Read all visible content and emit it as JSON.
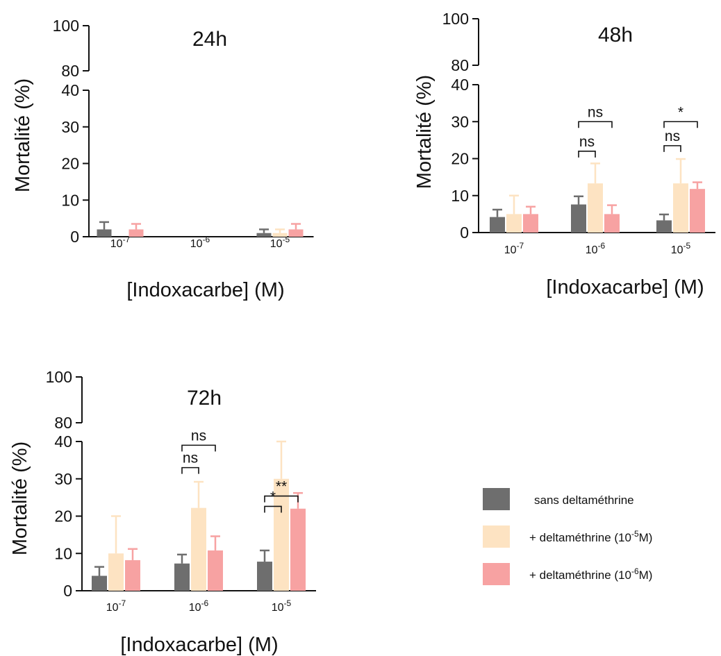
{
  "colors": {
    "sans": "#6e6e6e",
    "d5": "#fde3c2",
    "d6": "#f7a2a2",
    "axis": "#111111"
  },
  "legend": {
    "items": [
      {
        "label": "sans deltaméthrine",
        "color": "#6e6e6e"
      },
      {
        "label": "+ deltaméthrine (10",
        "sup": "-5",
        "post": "M)",
        "color": "#fde3c2"
      },
      {
        "label": "+ deltaméthrine (10",
        "sup": "-6",
        "post": "M)",
        "color": "#f7a2a2"
      }
    ]
  },
  "chart_data": [
    {
      "type": "bar",
      "title": "24h",
      "ylabel": "Mortalité (%)",
      "xlabel": "[Indoxacarbe] (M)",
      "categories": [
        {
          "base": "10",
          "exp": "-7"
        },
        {
          "base": "10",
          "exp": "-6"
        },
        {
          "base": "10",
          "exp": "-5"
        }
      ],
      "yticks_lower": [
        0,
        10,
        20,
        30,
        40
      ],
      "yticks_upper": [
        80,
        100
      ],
      "axis_break": [
        40,
        80
      ],
      "series": [
        {
          "values": [
            2,
            0,
            1
          ],
          "err": [
            2,
            0,
            1
          ]
        },
        {
          "values": [
            0,
            0,
            1
          ],
          "err": [
            0,
            0,
            1
          ]
        },
        {
          "values": [
            2,
            0,
            2
          ],
          "err": [
            1.5,
            0,
            1.5
          ]
        }
      ],
      "significance": []
    },
    {
      "type": "bar",
      "title": "48h",
      "ylabel": "Mortalité (%)",
      "xlabel": "[Indoxacarbe] (M)",
      "categories": [
        {
          "base": "10",
          "exp": "-7"
        },
        {
          "base": "10",
          "exp": "-6"
        },
        {
          "base": "10",
          "exp": "-5"
        }
      ],
      "yticks_lower": [
        0,
        10,
        20,
        30,
        40
      ],
      "yticks_upper": [
        80,
        100
      ],
      "axis_break": [
        40,
        80
      ],
      "series": [
        {
          "values": [
            4.2,
            7.6,
            3.3
          ],
          "err": [
            2,
            2.2,
            1.6
          ]
        },
        {
          "values": [
            5,
            13.3,
            13.3
          ],
          "err": [
            5,
            5.4,
            6.6
          ]
        },
        {
          "values": [
            5,
            5,
            11.8
          ],
          "err": [
            2,
            2.4,
            1.8
          ]
        }
      ],
      "significance": [
        {
          "group": 1,
          "from": 0,
          "to": 1,
          "label": "ns",
          "y": 22
        },
        {
          "group": 1,
          "from": 0,
          "to": 2,
          "label": "ns",
          "y": 30
        },
        {
          "group": 2,
          "from": 0,
          "to": 1,
          "label": "ns",
          "y": 23.5
        },
        {
          "group": 2,
          "from": 0,
          "to": 2,
          "label": "*",
          "y": 30
        }
      ]
    },
    {
      "type": "bar",
      "title": "72h",
      "ylabel": "Mortalité (%)",
      "xlabel": "[Indoxacarbe] (M)",
      "categories": [
        {
          "base": "10",
          "exp": "-7"
        },
        {
          "base": "10",
          "exp": "-6"
        },
        {
          "base": "10",
          "exp": "-5"
        }
      ],
      "yticks_lower": [
        0,
        10,
        20,
        30,
        40
      ],
      "yticks_upper": [
        80,
        100
      ],
      "axis_break": [
        40,
        80
      ],
      "series": [
        {
          "values": [
            4,
            7.3,
            7.8
          ],
          "err": [
            2.4,
            2.4,
            3
          ]
        },
        {
          "values": [
            10,
            22.2,
            30
          ],
          "err": [
            10,
            7,
            10
          ]
        },
        {
          "values": [
            8.2,
            10.8,
            22
          ],
          "err": [
            3,
            3.8,
            4.2
          ]
        }
      ],
      "significance": [
        {
          "group": 1,
          "from": 0,
          "to": 1,
          "label": "ns",
          "y": 33
        },
        {
          "group": 1,
          "from": 0,
          "to": 2,
          "label": "ns",
          "y": 39
        },
        {
          "group": 2,
          "from": 0,
          "to": 1,
          "label": "*",
          "y": 43.5
        },
        {
          "group": 2,
          "from": 0,
          "to": 2,
          "label": "**",
          "y": 48
        }
      ]
    }
  ]
}
